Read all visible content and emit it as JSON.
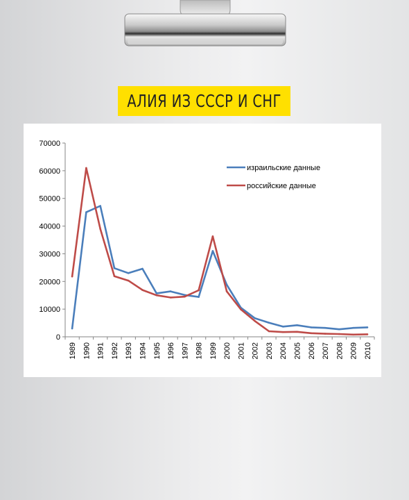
{
  "banner": {
    "title": "АЛИЯ ИЗ СССР И СНГ"
  },
  "colors": {
    "banner": "#ffe000",
    "israeli": "#4a7ebb",
    "russian": "#be4b48"
  },
  "chart_data": {
    "type": "line",
    "title": "",
    "xlabel": "",
    "ylabel": "",
    "x": [
      "1989",
      "1990",
      "1991",
      "1992",
      "1993",
      "1994",
      "1995",
      "1996",
      "1997",
      "1998",
      "1999",
      "2000",
      "2001",
      "2002",
      "2003",
      "2004",
      "2005",
      "2006",
      "2007",
      "2008",
      "2009",
      "2010"
    ],
    "ylim": [
      0,
      70000
    ],
    "yticks": [
      0,
      10000,
      20000,
      30000,
      40000,
      50000,
      60000,
      70000
    ],
    "ytick_labels": [
      "0",
      "10000",
      "20000",
      "30000",
      "40000",
      "50000",
      "60000",
      "70000"
    ],
    "grid": false,
    "legend_position": "top-right",
    "series": [
      {
        "name": "израильские данные",
        "color": "#4a7ebb",
        "values": [
          3000,
          45000,
          47300,
          24800,
          23000,
          24600,
          15700,
          16400,
          15100,
          14400,
          31000,
          18800,
          10500,
          6700,
          5100,
          3700,
          4200,
          3400,
          3200,
          2700,
          3200,
          3400
        ]
      },
      {
        "name": "российские данные",
        "color": "#be4b48",
        "values": [
          21800,
          61000,
          39000,
          21900,
          20300,
          16900,
          15000,
          14200,
          14500,
          16800,
          36300,
          16400,
          9900,
          5700,
          2000,
          1700,
          1800,
          1300,
          1100,
          1000,
          800,
          900
        ]
      }
    ]
  }
}
